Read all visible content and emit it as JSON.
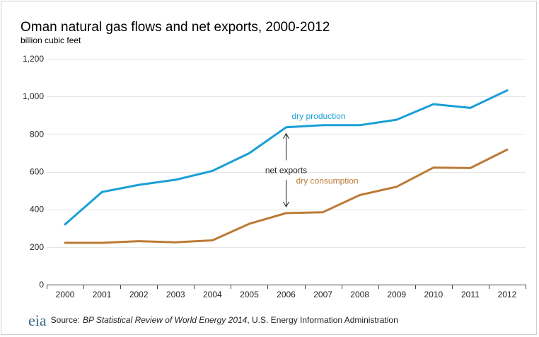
{
  "chart_data": {
    "type": "line",
    "title": "Oman natural gas flows and net exports, 2000-2012",
    "subtitle": "billion cubic feet",
    "categories": [
      "2000",
      "2001",
      "2002",
      "2003",
      "2004",
      "2005",
      "2006",
      "2007",
      "2008",
      "2009",
      "2010",
      "2011",
      "2012"
    ],
    "series": [
      {
        "name": "dry production",
        "color": "#1a9fd6",
        "values": [
          320,
          492,
          530,
          557,
          604,
          698,
          836,
          847,
          847,
          876,
          959,
          939,
          1032
        ]
      },
      {
        "name": "dry consumption",
        "color": "#bc7a36",
        "values": [
          222,
          222,
          231,
          225,
          235,
          323,
          380,
          385,
          476,
          520,
          622,
          619,
          717
        ]
      }
    ],
    "ylim": [
      0,
      1200
    ],
    "yticks": [
      0,
      200,
      400,
      600,
      800,
      1000,
      1200
    ],
    "ytick_labels": [
      "0",
      "200",
      "400",
      "600",
      "800",
      "1,000",
      "1,200"
    ],
    "grid": true,
    "annotation": {
      "text": "net exports",
      "year": "2006"
    }
  },
  "footer": {
    "logo_text": "eia",
    "source_label": "Source:",
    "source_title": "BP Statistical Review of World Energy 2014",
    "source_rest": ", U.S. Energy Information  Administration"
  }
}
